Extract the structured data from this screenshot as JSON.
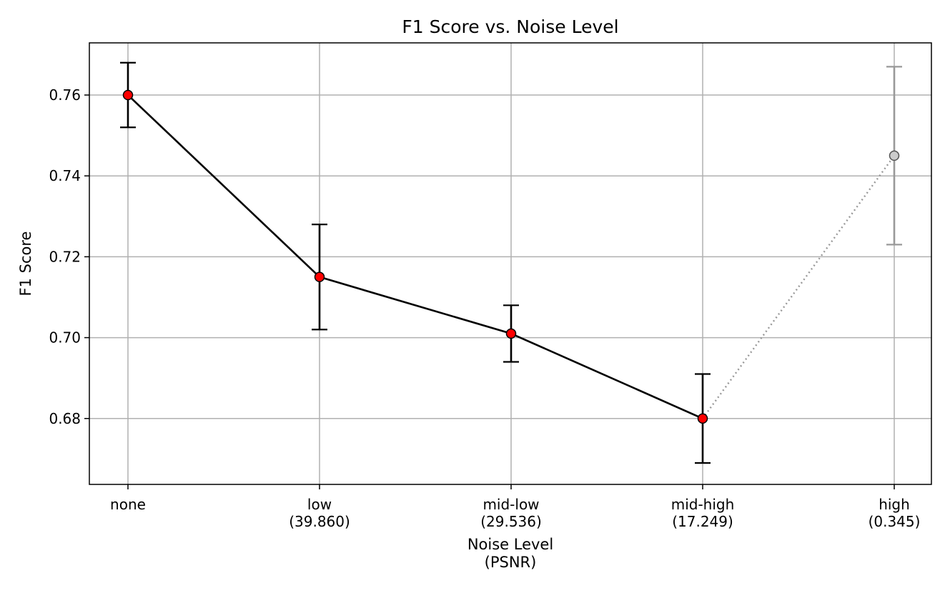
{
  "chart_data": {
    "type": "line",
    "title": "F1 Score vs. Noise Level",
    "xlabel": [
      "Noise Level",
      "(PSNR)"
    ],
    "ylabel": "F1 Score",
    "categories": [
      [
        "none"
      ],
      [
        "low",
        "(39.860)"
      ],
      [
        "mid-low",
        "(29.536)"
      ],
      [
        "mid-high",
        "(17.249)"
      ],
      [
        "high",
        "(0.345)"
      ]
    ],
    "yticks": [
      0.68,
      0.7,
      0.72,
      0.74,
      0.76
    ],
    "ytick_labels": [
      "0.68",
      "0.70",
      "0.72",
      "0.74",
      "0.76"
    ],
    "ylim": [
      0.6637,
      0.7729
    ],
    "grid": true,
    "series": [
      {
        "values": [
          0.76,
          0.715,
          0.701,
          0.68,
          0.745
        ],
        "err_low": [
          0.752,
          0.702,
          0.694,
          0.669,
          0.723
        ],
        "err_high": [
          0.768,
          0.728,
          0.708,
          0.691,
          0.767
        ],
        "highlighted": [
          true,
          true,
          true,
          true,
          false
        ]
      }
    ],
    "colors": {
      "line": "#000000",
      "marker": "#ff0000",
      "dim": "#999999",
      "dim_marker": "#cccccc",
      "grid": "#b0b0b0"
    }
  }
}
